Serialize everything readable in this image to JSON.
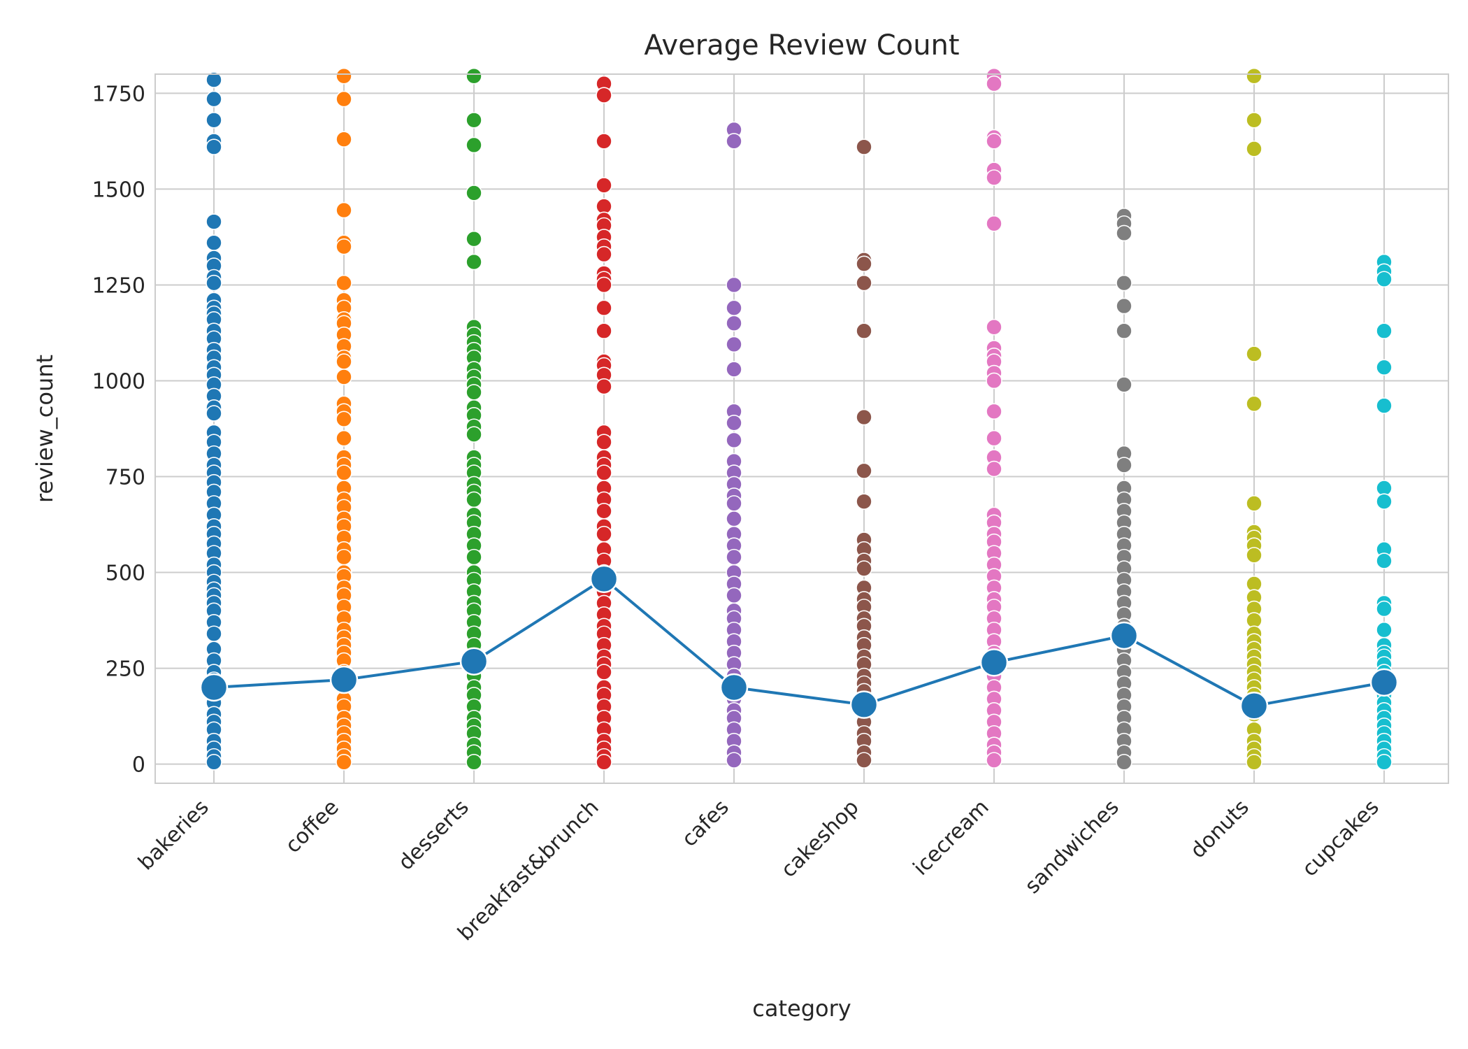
{
  "chart_data": {
    "type": "scatter",
    "title": "Average Review Count",
    "xlabel": "category",
    "ylabel": "review_count",
    "ylim": [
      -50,
      1800
    ],
    "yticks": [
      0,
      250,
      500,
      750,
      1000,
      1250,
      1500,
      1750
    ],
    "grid": true,
    "legend": "none",
    "categories": [
      "bakeries",
      "coffee",
      "desserts",
      "breakfast&brunch",
      "cafes",
      "cakeshop",
      "icecream",
      "sandwiches",
      "donuts",
      "cupcakes"
    ],
    "colors": [
      "#1f77b4",
      "#ff7f0e",
      "#2ca02c",
      "#d62728",
      "#9467bd",
      "#8c564b",
      "#e377c2",
      "#7f7f7f",
      "#bcbd22",
      "#17becf"
    ],
    "series": [
      {
        "category": "bakeries",
        "values": [
          1785,
          1735,
          1680,
          1625,
          1610,
          1415,
          1360,
          1320,
          1300,
          1270,
          1255,
          1210,
          1190,
          1175,
          1160,
          1130,
          1110,
          1080,
          1060,
          1035,
          1015,
          990,
          960,
          930,
          915,
          865,
          840,
          810,
          780,
          760,
          735,
          710,
          680,
          650,
          620,
          600,
          575,
          550,
          520,
          500,
          475,
          455,
          440,
          420,
          400,
          370,
          340,
          300,
          270,
          240,
          220,
          200,
          180,
          160,
          130,
          110,
          90,
          60,
          40,
          20,
          5
        ]
      },
      {
        "category": "coffee",
        "values": [
          1795,
          1735,
          1630,
          1445,
          1360,
          1350,
          1255,
          1210,
          1190,
          1160,
          1150,
          1120,
          1090,
          1060,
          1050,
          1010,
          940,
          920,
          900,
          850,
          800,
          780,
          760,
          720,
          690,
          670,
          640,
          620,
          590,
          560,
          540,
          500,
          490,
          460,
          440,
          410,
          380,
          350,
          330,
          310,
          290,
          270,
          240,
          220,
          200,
          170,
          150,
          120,
          100,
          80,
          60,
          40,
          20,
          5
        ]
      },
      {
        "category": "desserts",
        "values": [
          1795,
          1680,
          1615,
          1490,
          1370,
          1310,
          1140,
          1120,
          1100,
          1080,
          1060,
          1030,
          1010,
          990,
          970,
          930,
          910,
          880,
          860,
          800,
          780,
          760,
          730,
          710,
          690,
          650,
          630,
          600,
          570,
          540,
          500,
          480,
          450,
          420,
          400,
          370,
          340,
          310,
          280,
          260,
          230,
          200,
          180,
          150,
          120,
          100,
          80,
          50,
          30,
          5
        ]
      },
      {
        "category": "breakfast&brunch",
        "values": [
          1775,
          1745,
          1625,
          1510,
          1455,
          1420,
          1405,
          1375,
          1350,
          1330,
          1280,
          1265,
          1250,
          1190,
          1130,
          1050,
          1040,
          1015,
          985,
          865,
          840,
          800,
          780,
          760,
          720,
          690,
          660,
          620,
          600,
          560,
          530,
          500,
          480,
          450,
          420,
          390,
          360,
          340,
          310,
          280,
          260,
          240,
          200,
          180,
          150,
          120,
          90,
          60,
          40,
          20,
          5
        ]
      },
      {
        "category": "cafes",
        "values": [
          1655,
          1625,
          1250,
          1190,
          1150,
          1095,
          1030,
          920,
          890,
          845,
          790,
          760,
          730,
          700,
          680,
          640,
          600,
          570,
          540,
          500,
          470,
          440,
          400,
          380,
          350,
          320,
          290,
          260,
          230,
          200,
          170,
          140,
          120,
          90,
          60,
          30,
          10
        ]
      },
      {
        "category": "cakeshop",
        "values": [
          1610,
          1315,
          1305,
          1255,
          1130,
          905,
          765,
          685,
          585,
          560,
          530,
          510,
          460,
          430,
          410,
          380,
          360,
          330,
          310,
          280,
          260,
          230,
          210,
          190,
          170,
          140,
          110,
          80,
          60,
          30,
          10
        ]
      },
      {
        "category": "icecream",
        "values": [
          1795,
          1775,
          1635,
          1625,
          1550,
          1530,
          1410,
          1140,
          1085,
          1065,
          1050,
          1020,
          1000,
          920,
          850,
          800,
          770,
          650,
          630,
          600,
          580,
          550,
          520,
          490,
          460,
          430,
          410,
          380,
          350,
          320,
          290,
          260,
          230,
          200,
          170,
          140,
          110,
          80,
          50,
          30,
          10
        ]
      },
      {
        "category": "sandwiches",
        "values": [
          1430,
          1410,
          1385,
          1255,
          1195,
          1130,
          990,
          810,
          780,
          720,
          690,
          660,
          630,
          600,
          570,
          540,
          510,
          480,
          450,
          420,
          390,
          360,
          330,
          300,
          270,
          240,
          210,
          180,
          150,
          120,
          90,
          60,
          30,
          5
        ]
      },
      {
        "category": "donuts",
        "values": [
          1795,
          1680,
          1605,
          1070,
          940,
          680,
          605,
          590,
          570,
          545,
          470,
          435,
          405,
          375,
          340,
          320,
          300,
          280,
          260,
          240,
          220,
          200,
          180,
          160,
          130,
          90,
          60,
          40,
          20,
          5
        ]
      },
      {
        "category": "cupcakes",
        "values": [
          1310,
          1285,
          1265,
          1130,
          1035,
          935,
          720,
          685,
          560,
          530,
          420,
          405,
          350,
          310,
          290,
          280,
          260,
          240,
          220,
          200,
          180,
          160,
          140,
          120,
          100,
          80,
          60,
          40,
          20,
          5
        ]
      }
    ],
    "mean_line": {
      "color": "#1f77b4",
      "values": [
        200,
        220,
        268,
        483,
        200,
        155,
        265,
        335,
        152,
        213
      ]
    }
  }
}
